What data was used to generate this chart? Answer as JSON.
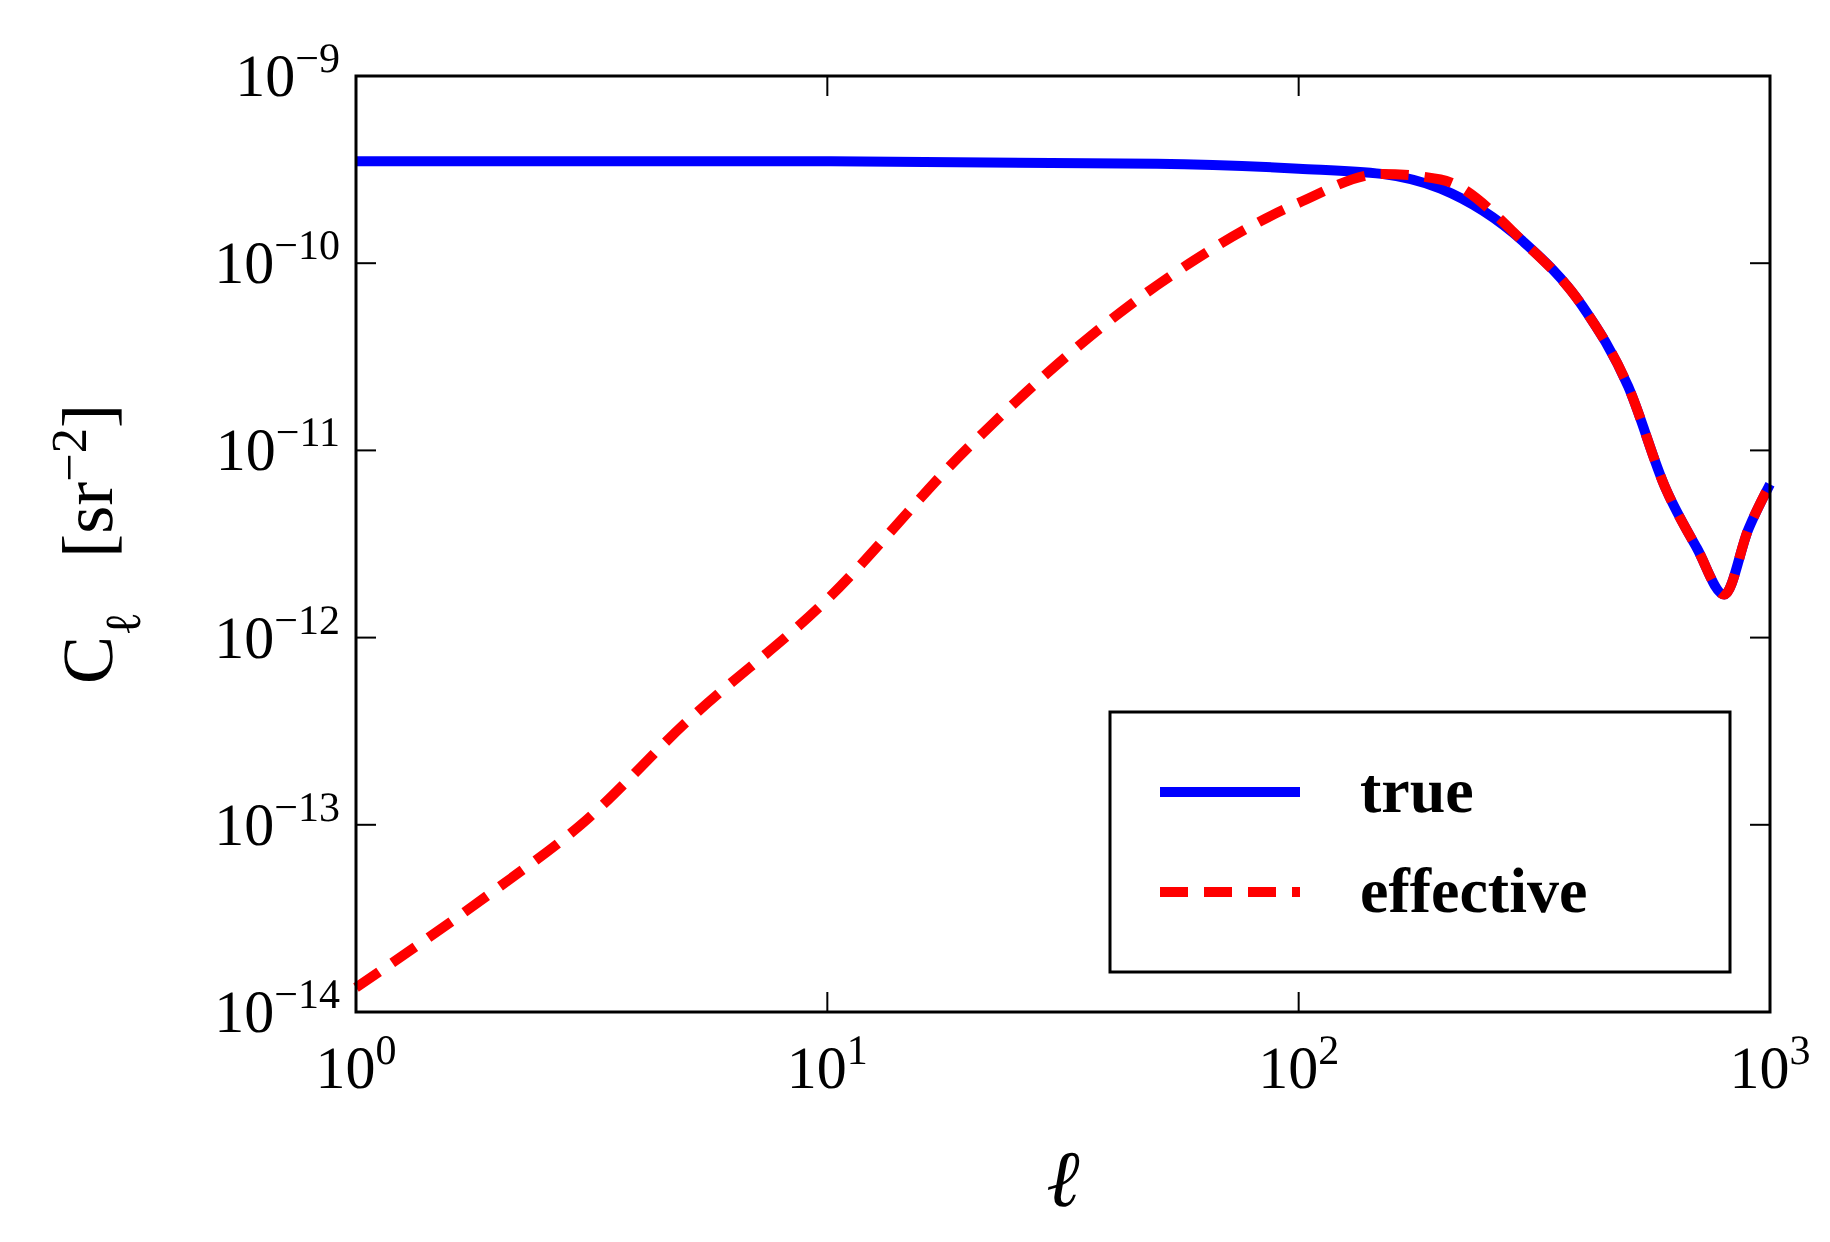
{
  "chart_data": {
    "type": "line",
    "xlabel": "ℓ",
    "ylabel": "C$_{ℓ}$   [sr$^{−2}$]",
    "log": "xy",
    "grid": false,
    "legend": "bottom right",
    "xlim": [
      1,
      1000
    ],
    "ylim": [
      1e-14,
      1e-09
    ],
    "xticks": [
      {
        "value": 1,
        "label": "10$^{0}$"
      },
      {
        "value": 10,
        "label": "10$^{1}$"
      },
      {
        "value": 100,
        "label": "10$^{2}$"
      },
      {
        "value": 1000,
        "label": "10$^{3}$"
      }
    ],
    "yticks": [
      {
        "value": 1e-14,
        "label": "10$^{−14}$"
      },
      {
        "value": 1e-13,
        "label": "10$^{−13}$"
      },
      {
        "value": 1e-12,
        "label": "10$^{−12}$"
      },
      {
        "value": 1e-11,
        "label": "10$^{−11}$"
      },
      {
        "value": 1e-10,
        "label": "10$^{−10}$"
      },
      {
        "value": 1e-09,
        "label": "10$^{−9}$"
      }
    ],
    "series": [
      {
        "name": "true",
        "color": "#0000ff",
        "line_style": "solid",
        "x": [
          1,
          10,
          50,
          100,
          150,
          200,
          300,
          400,
          500,
          600,
          700,
          800,
          900,
          1000
        ],
        "values": [
          3.5e-10,
          3.5e-10,
          3.4e-10,
          3.2e-10,
          3e-10,
          2.5e-10,
          1.3e-10,
          5.9e-11,
          2.2e-11,
          6.3e-12,
          3e-12,
          1.7e-12,
          3.8e-12,
          6.6e-12
        ]
      },
      {
        "name": "effective",
        "color": "#ff0000",
        "line_style": "dashed",
        "x": [
          1,
          2,
          3,
          5,
          10,
          20,
          50,
          100,
          150,
          200,
          300,
          400,
          500,
          600,
          700,
          800,
          900,
          1000
        ],
        "values": [
          1.35e-14,
          4.6e-14,
          1e-13,
          3.5e-13,
          1.6e-12,
          1.05e-11,
          7.6e-11,
          2.1e-10,
          3e-10,
          2.8e-10,
          1.3e-10,
          5.9e-11,
          2.2e-11,
          6.3e-12,
          3e-12,
          1.7e-12,
          3.8e-12,
          6.6e-12
        ]
      }
    ]
  }
}
